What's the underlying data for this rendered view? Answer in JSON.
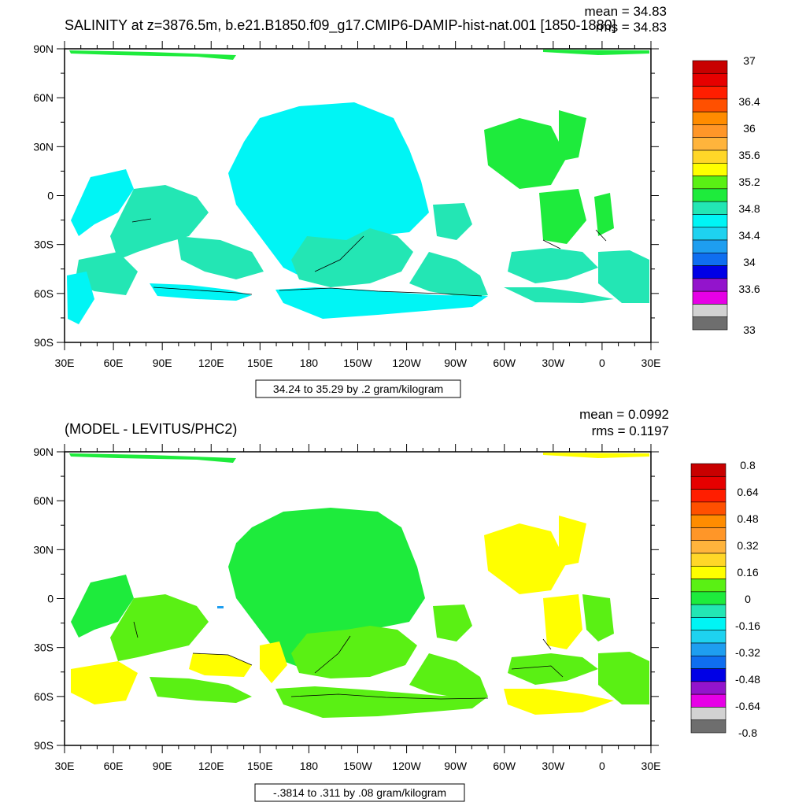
{
  "panels": [
    {
      "title": "SALINITY at z=3876.5m, b.e21.B1850.f09_g17.CMIP6-DAMIP-hist-nat.001 [1850-1880]",
      "mean": "mean = 34.83",
      "rms": "rms = 34.83",
      "footer": "34.24 to 35.29 by .2 gram/kilogram",
      "colorbar_labels": [
        "37",
        "36.4",
        "36",
        "35.6",
        "35.2",
        "34.8",
        "34.4",
        "34",
        "33.6",
        "33"
      ]
    },
    {
      "title": "(MODEL - LEVITUS/PHC2)",
      "mean": "mean = 0.0992",
      "rms": "rms = 0.1197",
      "footer": "-.3814 to .311 by .08 gram/kilogram",
      "colorbar_labels": [
        "0.8",
        "0.64",
        "0.48",
        "0.32",
        "0.16",
        "0",
        "-0.16",
        "-0.32",
        "-0.48",
        "-0.64",
        "-0.8"
      ]
    }
  ],
  "colors": {
    "palette": [
      "#6e6e6e",
      "#d2d2d2",
      "#e600e6",
      "#9314cc",
      "#0000e6",
      "#0f6ef0",
      "#1e9ef0",
      "#1ed2f0",
      "#00f5f5",
      "#23e6b4",
      "#1eeb3c",
      "#5af014",
      "#ffff00",
      "#ffd728",
      "#ffb43c",
      "#ff9628",
      "#ff8c00",
      "#ff5000",
      "#ff1e00",
      "#e60000",
      "#c80000"
    ],
    "top_main": "#00f5f5",
    "top_secondary": "#23e6b4",
    "top_atlantic": "#1eeb3c",
    "bottom_main": "#1eeb3c",
    "bottom_secondary": "#5af014",
    "bottom_positive": "#ffff00"
  },
  "axes": {
    "lat_labels": [
      "90N",
      "60N",
      "30N",
      "0",
      "30S",
      "60S",
      "90S"
    ],
    "lon_labels": [
      "30E",
      "60E",
      "90E",
      "120E",
      "150E",
      "180",
      "150W",
      "120W",
      "90W",
      "60W",
      "30W",
      "0",
      "30E"
    ]
  },
  "chart_data": [
    {
      "type": "heatmap",
      "title": "SALINITY at z=3876.5m, b.e21.B1850.f09_g17.CMIP6-DAMIP-hist-nat.001 [1850-1880]",
      "variable": "salinity",
      "units": "gram/kilogram",
      "x_range": [
        "30E",
        "30E"
      ],
      "y_range": [
        "90S",
        "90N"
      ],
      "contour_levels": [
        33,
        34.8,
        35.2,
        37
      ],
      "colorbar_ticks": [
        37,
        36.4,
        36,
        35.6,
        35.2,
        34.8,
        34.4,
        34,
        33.6,
        33
      ],
      "min": 34.24,
      "max": 35.29,
      "interval": 0.2,
      "mean": 34.83,
      "rms": 34.83,
      "legend": "right"
    },
    {
      "type": "heatmap",
      "title": "(MODEL - LEVITUS/PHC2)",
      "variable": "salinity difference",
      "units": "gram/kilogram",
      "x_range": [
        "30E",
        "30E"
      ],
      "y_range": [
        "90S",
        "90N"
      ],
      "colorbar_ticks": [
        0.8,
        0.64,
        0.48,
        0.32,
        0.16,
        0,
        -0.16,
        -0.32,
        -0.48,
        -0.64,
        -0.8
      ],
      "min": -0.3814,
      "max": 0.311,
      "interval": 0.08,
      "mean": 0.0992,
      "rms": 0.1197,
      "legend": "right"
    }
  ]
}
